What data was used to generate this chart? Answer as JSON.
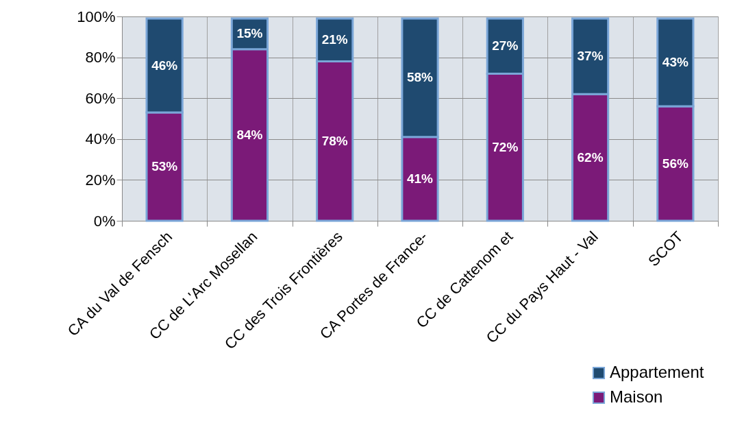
{
  "chart_data": {
    "type": "bar",
    "stacked": true,
    "categories": [
      "CA du Val de Fensch",
      "CC de L'Arc Mosellan",
      "CC des Trois Frontières",
      "CA Portes de France-",
      "CC de Cattenom et",
      "CC du Pays Haut - Val",
      "SCOT"
    ],
    "series": [
      {
        "name": "Maison",
        "color": "#7b1a78",
        "values": [
          53,
          84,
          78,
          41,
          72,
          62,
          56
        ]
      },
      {
        "name": "Appartement",
        "color": "#1f4a70",
        "values": [
          46,
          15,
          21,
          58,
          27,
          37,
          43
        ]
      }
    ],
    "ylim": [
      0,
      100
    ],
    "yticks": [
      {
        "value": 0,
        "label": "0%"
      },
      {
        "value": 20,
        "label": "20%"
      },
      {
        "value": 40,
        "label": "40%"
      },
      {
        "value": 60,
        "label": "60%"
      },
      {
        "value": 80,
        "label": "80%"
      },
      {
        "value": 100,
        "label": "100%"
      }
    ],
    "value_labels": [
      [
        "53%",
        "84%",
        "78%",
        "41%",
        "72%",
        "62%",
        "56%"
      ],
      [
        "46%",
        "15%",
        "21%",
        "58%",
        "27%",
        "37%",
        "43%"
      ]
    ],
    "grid": true,
    "legend": "bottom right"
  }
}
